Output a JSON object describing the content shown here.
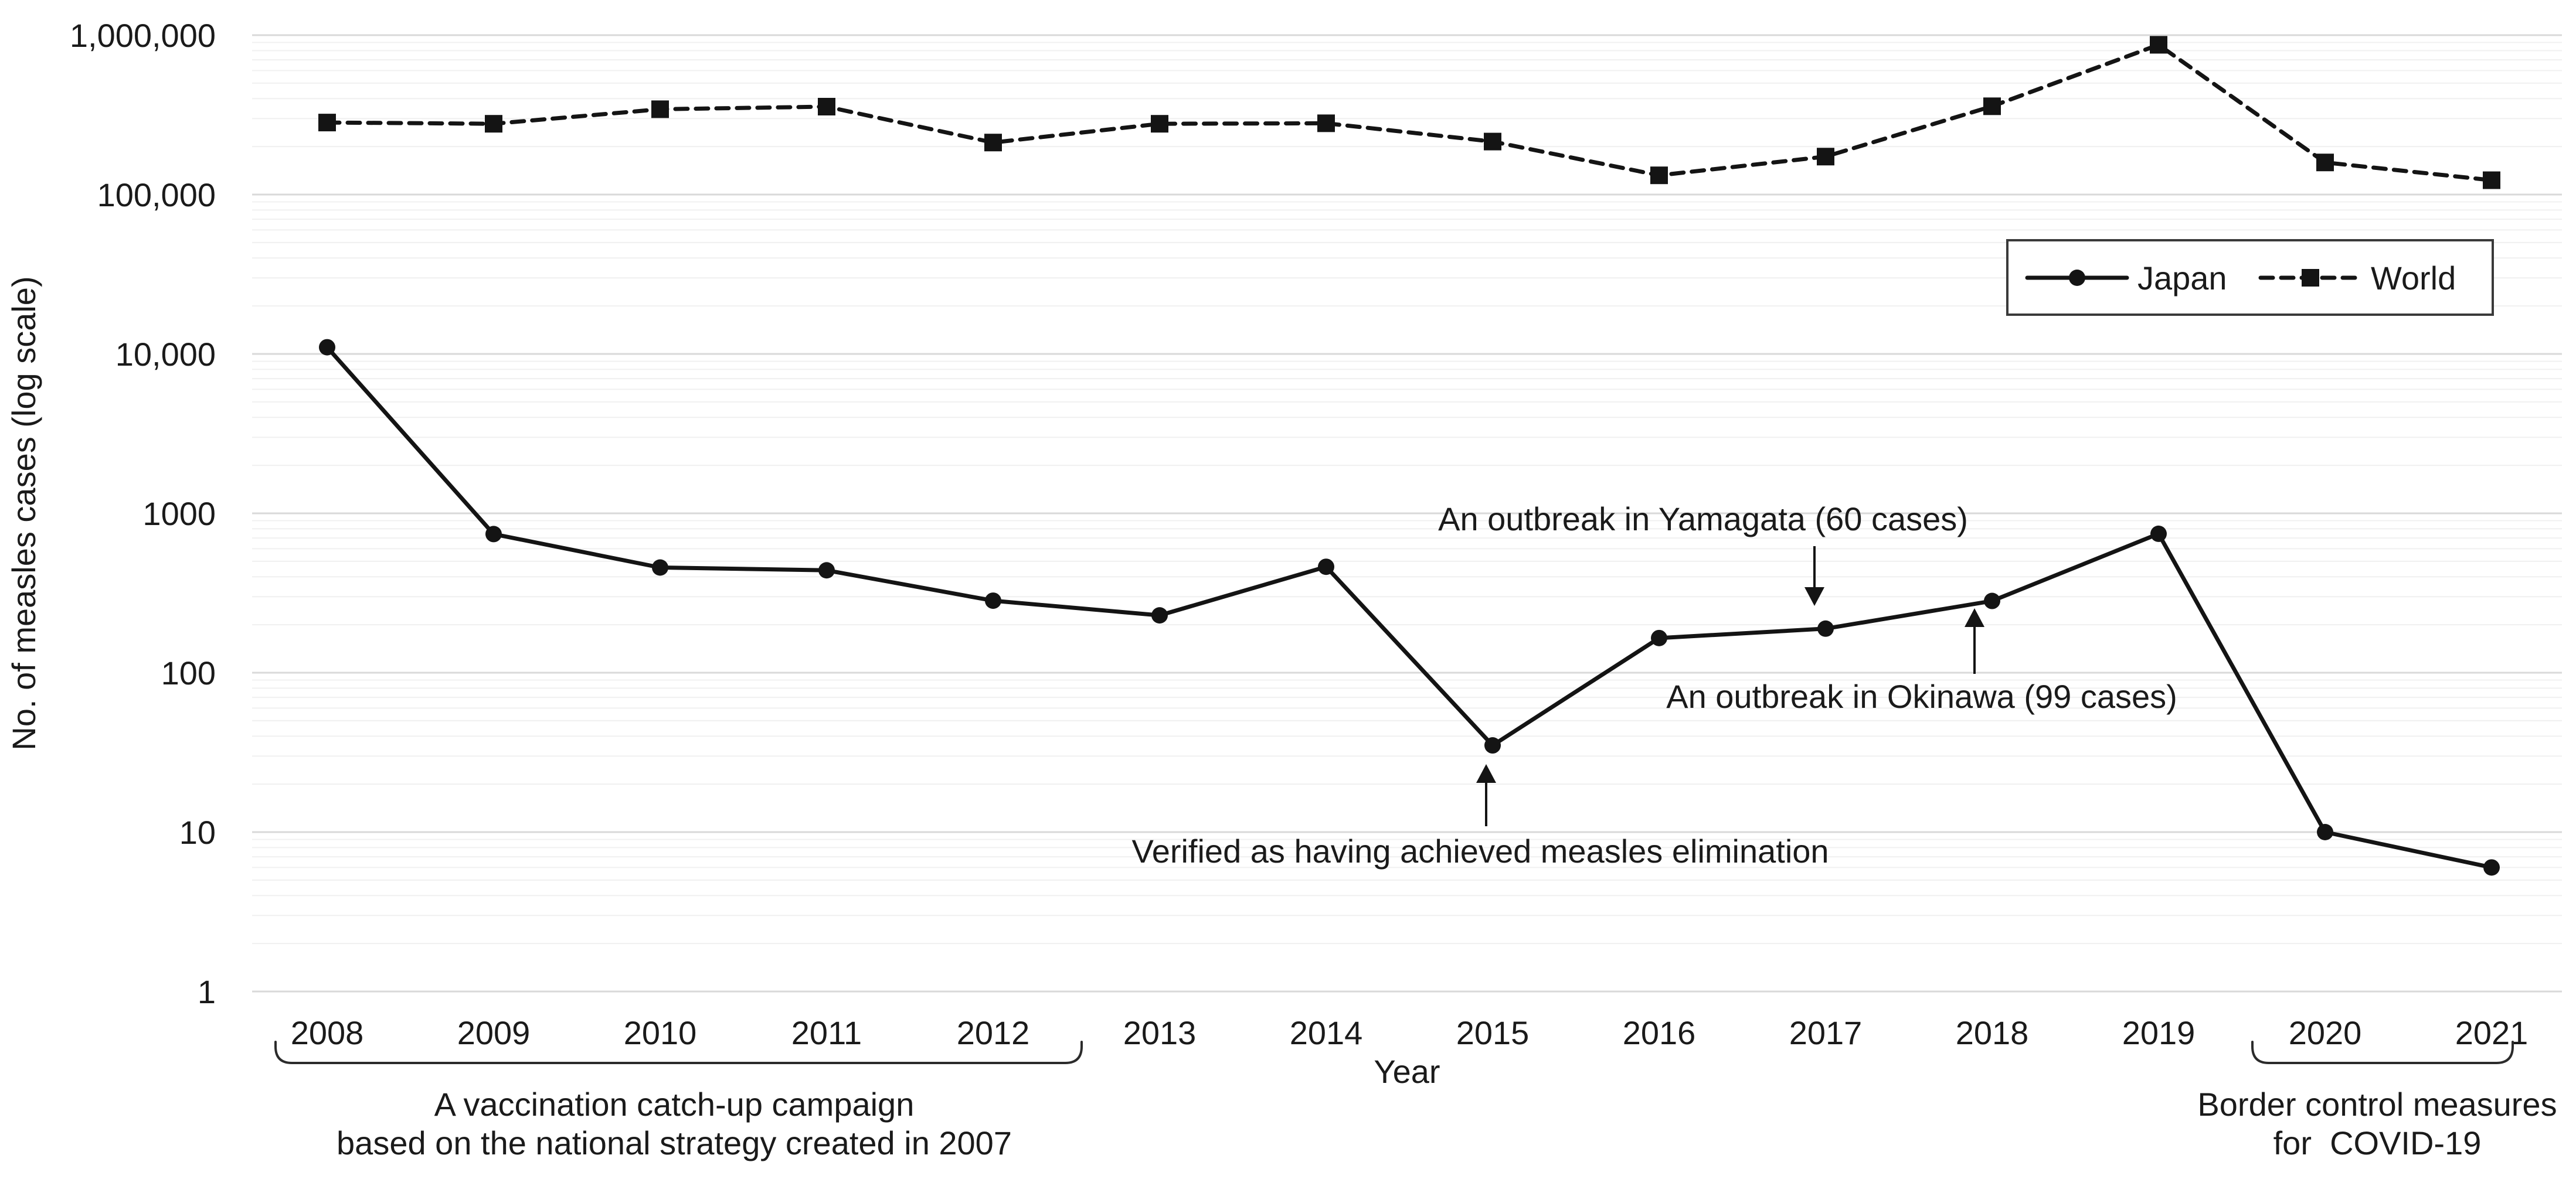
{
  "figure": {
    "background": "#ffffff",
    "text_color": "#1a1a1a",
    "series_color": "#141414",
    "gridline_major_color": "#d9d9d9",
    "gridline_minor_color": "#f0f0f0"
  },
  "chart_data": {
    "type": "line",
    "title": "",
    "xlabel": "Year",
    "ylabel": "No. of measles cases (log scale)",
    "y_scale": "log10",
    "ylim": [
      1,
      1000000
    ],
    "grid": "horizontal log major+minor",
    "legend_position": "inside upper right",
    "ytick_labels": [
      "1",
      "10",
      "100",
      "1000",
      "10,000",
      "100,000",
      "1,000,000"
    ],
    "categories": [
      "2008",
      "2009",
      "2010",
      "2011",
      "2012",
      "2013",
      "2014",
      "2015",
      "2016",
      "2017",
      "2018",
      "2019",
      "2020",
      "2021"
    ],
    "series": [
      {
        "name": "Japan",
        "line": "solid",
        "marker": "circle",
        "values": [
          11013,
          741,
          457,
          439,
          283,
          229,
          462,
          35,
          165,
          189,
          282,
          744,
          10,
          6
        ]
      },
      {
        "name": "World",
        "line": "dashed",
        "marker": "square",
        "values": [
          283000,
          278000,
          343000,
          356000,
          212000,
          278000,
          280000,
          215000,
          132000,
          173000,
          358000,
          870000,
          159000,
          123000
        ]
      }
    ],
    "annotations": [
      {
        "text": "An outbreak in Yamagata (60 cases)",
        "target_year": "2017",
        "target_value": 189,
        "arrow_direction": "down"
      },
      {
        "text": "An outbreak in Okinawa (99 cases)",
        "target_year": "2018",
        "target_value": 282,
        "arrow_direction": "up"
      },
      {
        "text": "Verified as having achieved measles elimination",
        "target_year": "2015",
        "target_value": 35,
        "arrow_direction": "up"
      }
    ],
    "range_brackets": [
      {
        "from_year": "2008",
        "to_year": "2012",
        "label_line1": "A vaccination catch-up campaign",
        "label_line2": "based on the national strategy created in 2007"
      },
      {
        "from_year": "2020",
        "to_year": "2021",
        "label_line1": "Border control measures",
        "label_line2": "for  COVID-19"
      }
    ]
  }
}
